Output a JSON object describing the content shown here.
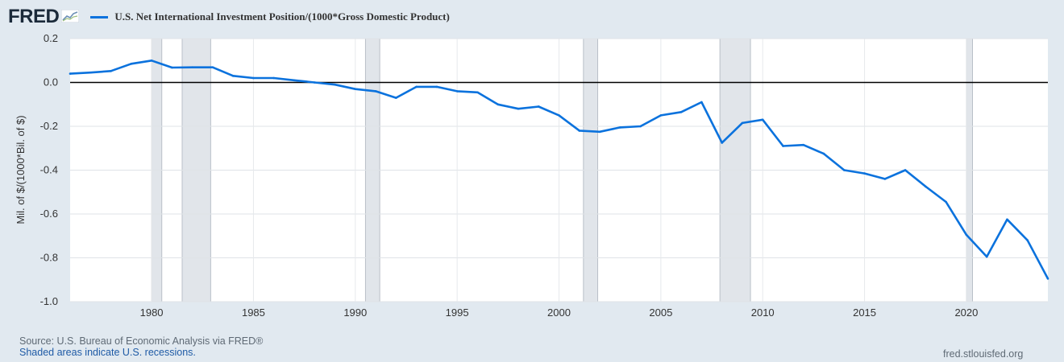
{
  "brand": {
    "logo_text": "FRED",
    "logo_icon": "chart-trend-icon"
  },
  "colors": {
    "series": "#0b72dd",
    "recession": "#e1e5ea",
    "background": "#e1e9f0",
    "plot_bg": "#ffffff"
  },
  "footer": {
    "source": "Source: U.S. Bureau of Economic Analysis via FRED®",
    "recession_note": "Shaded areas indicate U.S. recessions.",
    "site": "fred.stlouisfed.org"
  },
  "chart_data": {
    "type": "line",
    "title": "",
    "xlabel": "",
    "ylabel": "Mil. of $/(1000*Bil. of $)",
    "xlim": [
      1976,
      2024
    ],
    "ylim": [
      -1.0,
      0.2
    ],
    "yticks": [
      "0.2",
      "0.0",
      "-0.2",
      "-0.4",
      "-0.6",
      "-0.8",
      "-1.0"
    ],
    "xticks": [
      "1980",
      "1985",
      "1990",
      "1995",
      "2000",
      "2005",
      "2010",
      "2015",
      "2020"
    ],
    "grid": true,
    "zero_line": true,
    "legend_position": "top-left",
    "recessions": [
      [
        1980.0,
        1980.5
      ],
      [
        1981.5,
        1982.9
      ],
      [
        1990.5,
        1991.2
      ],
      [
        2001.2,
        2001.9
      ],
      [
        2007.9,
        2009.4
      ],
      [
        2020.0,
        2020.3
      ]
    ],
    "series": [
      {
        "name": "U.S. Net International Investment Position/(1000*Gross Domestic Product)",
        "x": [
          1976,
          1977,
          1978,
          1979,
          1980,
          1981,
          1982,
          1983,
          1984,
          1985,
          1986,
          1987,
          1988,
          1989,
          1990,
          1991,
          1992,
          1993,
          1994,
          1995,
          1996,
          1997,
          1998,
          1999,
          2000,
          2001,
          2002,
          2003,
          2004,
          2005,
          2006,
          2007,
          2008,
          2009,
          2010,
          2011,
          2012,
          2013,
          2014,
          2015,
          2016,
          2017,
          2018,
          2019,
          2020,
          2021,
          2022,
          2023,
          2024
        ],
        "values": [
          0.04,
          0.045,
          0.052,
          0.085,
          0.1,
          0.068,
          0.069,
          0.069,
          0.03,
          0.02,
          0.02,
          0.01,
          0.0,
          -0.01,
          -0.03,
          -0.04,
          -0.07,
          -0.02,
          -0.02,
          -0.04,
          -0.045,
          -0.1,
          -0.12,
          -0.11,
          -0.15,
          -0.22,
          -0.225,
          -0.205,
          -0.2,
          -0.15,
          -0.135,
          -0.09,
          -0.275,
          -0.185,
          -0.17,
          -0.29,
          -0.285,
          -0.325,
          -0.4,
          -0.415,
          -0.44,
          -0.4,
          -0.475,
          -0.545,
          -0.695,
          -0.795,
          -0.625,
          -0.72,
          -0.895
        ]
      }
    ]
  }
}
